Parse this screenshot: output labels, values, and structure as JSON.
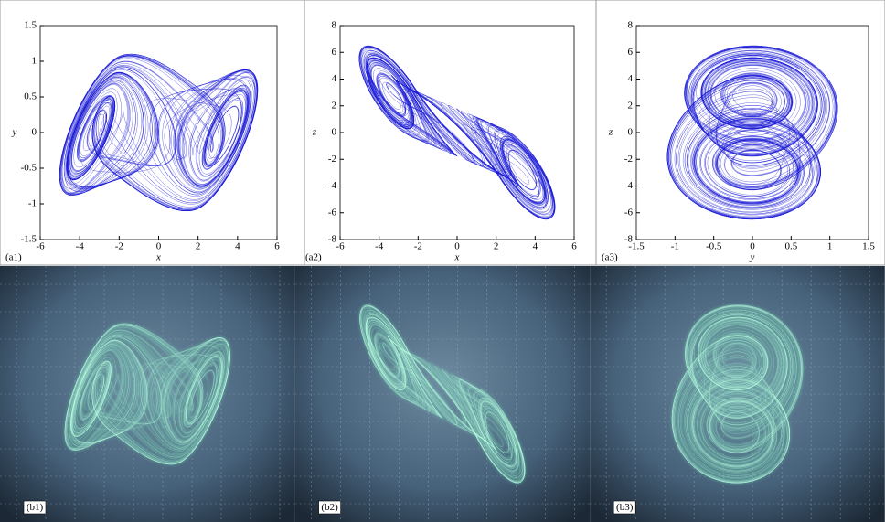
{
  "chart_data": [
    {
      "type": "phase-portrait",
      "panel_label": "(a1)",
      "x_label": "x",
      "y_label": "y",
      "xlim": [
        -6,
        6
      ],
      "xticks": [
        -6,
        -4,
        -2,
        0,
        2,
        4,
        6
      ],
      "ylim": [
        -1.5,
        1.5
      ],
      "yticks": [
        -1.5,
        -1,
        -0.5,
        0,
        0.5,
        1,
        1.5
      ]
    },
    {
      "type": "phase-portrait",
      "panel_label": "(a2)",
      "x_label": "x",
      "y_label": "z",
      "xlim": [
        -6,
        6
      ],
      "xticks": [
        -6,
        -4,
        -2,
        0,
        2,
        4,
        6
      ],
      "ylim": [
        -8,
        8
      ],
      "yticks": [
        -8,
        -6,
        -4,
        -2,
        0,
        2,
        4,
        6,
        8
      ]
    },
    {
      "type": "phase-portrait",
      "panel_label": "(a3)",
      "x_label": "y",
      "y_label": "z",
      "xlim": [
        -1.5,
        1.5
      ],
      "xticks": [
        -1.5,
        -1,
        -0.5,
        0,
        0.5,
        1,
        1.5
      ],
      "ylim": [
        -8,
        8
      ],
      "yticks": [
        -8,
        -6,
        -4,
        -2,
        0,
        2,
        4,
        6,
        8
      ]
    }
  ],
  "photos": [
    {
      "label": "(b1)"
    },
    {
      "label": "(b2)"
    },
    {
      "label": "(b3)"
    }
  ]
}
